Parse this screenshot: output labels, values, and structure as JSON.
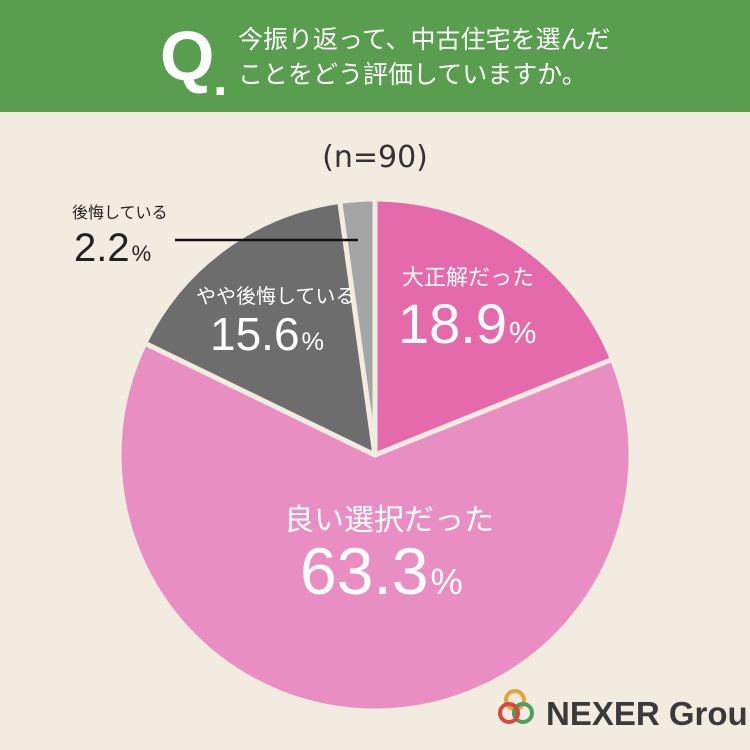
{
  "header": {
    "q_mark": "Q",
    "q_dot": ".",
    "question_line1": "今振り返って、中古住宅を選んだ",
    "question_line2": "ことをどう評価していますか。"
  },
  "sample_size": "(n=90)",
  "chart_data": {
    "type": "pie",
    "start": "12 o'clock, clockwise",
    "slices": [
      {
        "label": "大正解だった",
        "value": 18.9,
        "color": "#e46aab"
      },
      {
        "label": "良い選択だった",
        "value": 63.3,
        "color": "#e98ec3"
      },
      {
        "label": "やや後悔している",
        "value": 15.6,
        "color": "#6d6d6d"
      },
      {
        "label": "後悔している",
        "value": 2.2,
        "color": "#a5a5a5"
      }
    ],
    "unit": "%",
    "separator_color": "#f2ebe0"
  },
  "labels": [
    {
      "name": "great",
      "label": "大正解だった",
      "pct": "18.9"
    },
    {
      "name": "good",
      "label": "良い選択だった",
      "pct": "63.3"
    },
    {
      "name": "somewhat-regret",
      "label": "やや後悔している",
      "pct": "15.6"
    },
    {
      "name": "regret",
      "label": "後悔している",
      "pct": "2.2"
    }
  ],
  "percent_sign": "%",
  "logo": {
    "text": "NEXER Group",
    "ring_colors": [
      "#e6a23c",
      "#4aa05a",
      "#d9473f"
    ]
  }
}
